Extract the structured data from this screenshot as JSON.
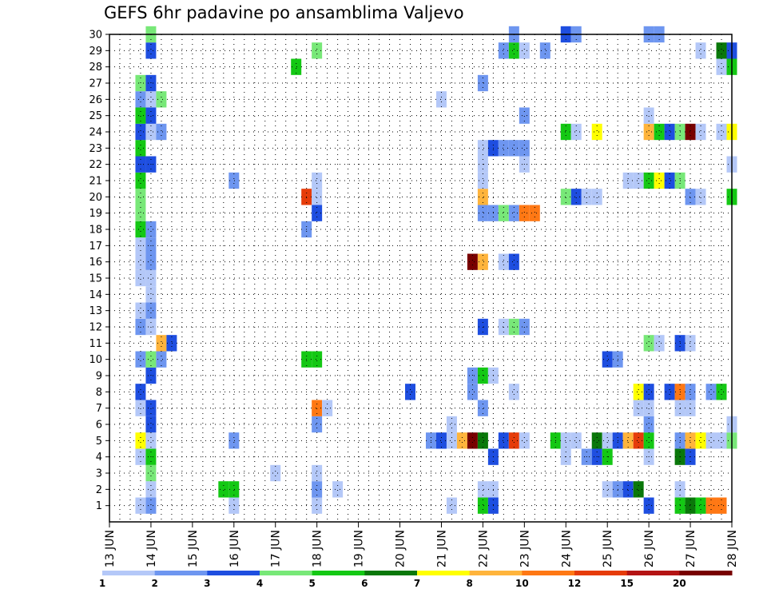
{
  "title": "GEFS 6hr padavine po ansamblima Valjevo",
  "chart_data": {
    "type": "heatmap",
    "title": "GEFS 6hr padavine po ansamblima Valjevo",
    "x_ticks": [
      "13 JUN",
      "14 JUN",
      "15 JUN",
      "16 JUN",
      "17 JUN",
      "18 JUN",
      "19 JUN",
      "20 JUN",
      "21 JUN",
      "22 JUN",
      "23 JUN",
      "24 JUN",
      "25 JUN",
      "26 JUN",
      "27 JUN",
      "28 JUN"
    ],
    "y_ticks": [
      "1",
      "2",
      "3",
      "4",
      "5",
      "6",
      "7",
      "8",
      "9",
      "10",
      "11",
      "12",
      "13",
      "14",
      "15",
      "16",
      "17",
      "18",
      "19",
      "20",
      "21",
      "22",
      "23",
      "24",
      "25",
      "26",
      "27",
      "28",
      "29",
      "30"
    ],
    "xlim": [
      "13 JUN 00Z",
      "28 JUN 00Z"
    ],
    "ylim": [
      0.5,
      30.5
    ],
    "time_step_hours": 6,
    "grid": "dotted",
    "colorbar": {
      "labels": [
        "1",
        "2",
        "3",
        "4",
        "5",
        "6",
        "7",
        "8",
        "10",
        "12",
        "15",
        "20"
      ],
      "colors": [
        "#b4c8f8",
        "#6e96f0",
        "#1e4ee0",
        "#78e878",
        "#14c814",
        "#0a780a",
        "#ffff00",
        "#ffb43c",
        "#ff7814",
        "#e63c0a",
        "#b41414",
        "#780000"
      ]
    },
    "cells": [
      {
        "m": 1,
        "t": "14 JUN 00Z",
        "c": 2
      },
      {
        "m": 1,
        "t": "13 JUN 18Z",
        "c": 1
      },
      {
        "m": 1,
        "t": "16 JUN 00Z",
        "c": 1
      },
      {
        "m": 1,
        "t": "18 JUN 00Z",
        "c": 1
      },
      {
        "m": 1,
        "t": "21 JUN 06Z",
        "c": 1
      },
      {
        "m": 1,
        "t": "22 JUN 00Z",
        "c": 5
      },
      {
        "m": 1,
        "t": "22 JUN 06Z",
        "c": 3
      },
      {
        "m": 1,
        "t": "26 JUN 00Z",
        "c": 3
      },
      {
        "m": 1,
        "t": "26 JUN 18Z",
        "c": 5
      },
      {
        "m": 1,
        "t": "27 JUN 00Z",
        "c": 6
      },
      {
        "m": 1,
        "t": "27 JUN 06Z",
        "c": 5
      },
      {
        "m": 1,
        "t": "27 JUN 12Z",
        "c": 9
      },
      {
        "m": 1,
        "t": "27 JUN 18Z",
        "c": 9
      },
      {
        "m": 2,
        "t": "14 JUN 00Z",
        "c": 1
      },
      {
        "m": 2,
        "t": "15 JUN 18Z",
        "c": 5
      },
      {
        "m": 2,
        "t": "16 JUN 00Z",
        "c": 5
      },
      {
        "m": 2,
        "t": "18 JUN 00Z",
        "c": 2
      },
      {
        "m": 2,
        "t": "18 JUN 12Z",
        "c": 1
      },
      {
        "m": 2,
        "t": "22 JUN 00Z",
        "c": 1
      },
      {
        "m": 2,
        "t": "22 JUN 06Z",
        "c": 1
      },
      {
        "m": 2,
        "t": "25 JUN 00Z",
        "c": 1
      },
      {
        "m": 2,
        "t": "25 JUN 06Z",
        "c": 2
      },
      {
        "m": 2,
        "t": "25 JUN 12Z",
        "c": 3
      },
      {
        "m": 2,
        "t": "25 JUN 18Z",
        "c": 6
      },
      {
        "m": 2,
        "t": "26 JUN 18Z",
        "c": 1
      },
      {
        "m": 3,
        "t": "14 JUN 00Z",
        "c": 4
      },
      {
        "m": 3,
        "t": "17 JUN 00Z",
        "c": 1
      },
      {
        "m": 3,
        "t": "18 JUN 00Z",
        "c": 1
      },
      {
        "m": 4,
        "t": "13 JUN 18Z",
        "c": 1
      },
      {
        "m": 4,
        "t": "14 JUN 00Z",
        "c": 5
      },
      {
        "m": 4,
        "t": "22 JUN 06Z",
        "c": 3
      },
      {
        "m": 4,
        "t": "24 JUN 00Z",
        "c": 1
      },
      {
        "m": 4,
        "t": "24 JUN 12Z",
        "c": 2
      },
      {
        "m": 4,
        "t": "24 JUN 18Z",
        "c": 3
      },
      {
        "m": 4,
        "t": "25 JUN 00Z",
        "c": 5
      },
      {
        "m": 4,
        "t": "26 JUN 00Z",
        "c": 1
      },
      {
        "m": 4,
        "t": "26 JUN 18Z",
        "c": 6
      },
      {
        "m": 4,
        "t": "27 JUN 00Z",
        "c": 3
      },
      {
        "m": 5,
        "t": "13 JUN 18Z",
        "c": 7
      },
      {
        "m": 5,
        "t": "14 JUN 00Z",
        "c": 1
      },
      {
        "m": 5,
        "t": "16 JUN 00Z",
        "c": 2
      },
      {
        "m": 5,
        "t": "20 JUN 18Z",
        "c": 2
      },
      {
        "m": 5,
        "t": "21 JUN 00Z",
        "c": 3
      },
      {
        "m": 5,
        "t": "21 JUN 06Z",
        "c": 1
      },
      {
        "m": 5,
        "t": "21 JUN 12Z",
        "c": 8
      },
      {
        "m": 5,
        "t": "21 JUN 18Z",
        "c": 12
      },
      {
        "m": 5,
        "t": "22 JUN 00Z",
        "c": 6
      },
      {
        "m": 5,
        "t": "22 JUN 12Z",
        "c": 3
      },
      {
        "m": 5,
        "t": "22 JUN 18Z",
        "c": 10
      },
      {
        "m": 5,
        "t": "23 JUN 00Z",
        "c": 1
      },
      {
        "m": 5,
        "t": "23 JUN 18Z",
        "c": 5
      },
      {
        "m": 5,
        "t": "24 JUN 00Z",
        "c": 1
      },
      {
        "m": 5,
        "t": "24 JUN 06Z",
        "c": 1
      },
      {
        "m": 5,
        "t": "24 JUN 18Z",
        "c": 6
      },
      {
        "m": 5,
        "t": "25 JUN 00Z",
        "c": 1
      },
      {
        "m": 5,
        "t": "25 JUN 06Z",
        "c": 3
      },
      {
        "m": 5,
        "t": "25 JUN 12Z",
        "c": 8
      },
      {
        "m": 5,
        "t": "25 JUN 18Z",
        "c": 10
      },
      {
        "m": 5,
        "t": "26 JUN 00Z",
        "c": 5
      },
      {
        "m": 5,
        "t": "26 JUN 18Z",
        "c": 2
      },
      {
        "m": 5,
        "t": "27 JUN 00Z",
        "c": 8
      },
      {
        "m": 5,
        "t": "27 JUN 06Z",
        "c": 7
      },
      {
        "m": 5,
        "t": "27 JUN 12Z",
        "c": 1
      },
      {
        "m": 5,
        "t": "27 JUN 18Z",
        "c": 1
      },
      {
        "m": 5,
        "t": "28 JUN 00Z",
        "c": 4
      },
      {
        "m": 6,
        "t": "14 JUN 00Z",
        "c": 3
      },
      {
        "m": 6,
        "t": "18 JUN 00Z",
        "c": 2
      },
      {
        "m": 6,
        "t": "21 JUN 06Z",
        "c": 1
      },
      {
        "m": 6,
        "t": "26 JUN 00Z",
        "c": 2
      },
      {
        "m": 6,
        "t": "28 JUN 00Z",
        "c": 1
      },
      {
        "m": 7,
        "t": "13 JUN 18Z",
        "c": 1
      },
      {
        "m": 7,
        "t": "14 JUN 00Z",
        "c": 3
      },
      {
        "m": 7,
        "t": "18 JUN 00Z",
        "c": 9
      },
      {
        "m": 7,
        "t": "18 JUN 06Z",
        "c": 1
      },
      {
        "m": 7,
        "t": "22 JUN 00Z",
        "c": 2
      },
      {
        "m": 7,
        "t": "25 JUN 18Z",
        "c": 1
      },
      {
        "m": 7,
        "t": "26 JUN 00Z",
        "c": 1
      },
      {
        "m": 7,
        "t": "26 JUN 18Z",
        "c": 1
      },
      {
        "m": 7,
        "t": "27 JUN 00Z",
        "c": 1
      },
      {
        "m": 8,
        "t": "13 JUN 18Z",
        "c": 3
      },
      {
        "m": 8,
        "t": "20 JUN 06Z",
        "c": 3
      },
      {
        "m": 8,
        "t": "21 JUN 18Z",
        "c": 2
      },
      {
        "m": 8,
        "t": "22 JUN 18Z",
        "c": 1
      },
      {
        "m": 8,
        "t": "25 JUN 18Z",
        "c": 7
      },
      {
        "m": 8,
        "t": "26 JUN 00Z",
        "c": 3
      },
      {
        "m": 8,
        "t": "26 JUN 12Z",
        "c": 3
      },
      {
        "m": 8,
        "t": "26 JUN 18Z",
        "c": 9
      },
      {
        "m": 8,
        "t": "27 JUN 00Z",
        "c": 2
      },
      {
        "m": 8,
        "t": "27 JUN 12Z",
        "c": 2
      },
      {
        "m": 8,
        "t": "27 JUN 18Z",
        "c": 5
      },
      {
        "m": 9,
        "t": "14 JUN 00Z",
        "c": 3
      },
      {
        "m": 9,
        "t": "21 JUN 18Z",
        "c": 2
      },
      {
        "m": 9,
        "t": "22 JUN 00Z",
        "c": 5
      },
      {
        "m": 9,
        "t": "22 JUN 06Z",
        "c": 1
      },
      {
        "m": 10,
        "t": "13 JUN 18Z",
        "c": 2
      },
      {
        "m": 10,
        "t": "14 JUN 00Z",
        "c": 4
      },
      {
        "m": 10,
        "t": "14 JUN 06Z",
        "c": 2
      },
      {
        "m": 10,
        "t": "17 JUN 18Z",
        "c": 5
      },
      {
        "m": 10,
        "t": "18 JUN 00Z",
        "c": 5
      },
      {
        "m": 10,
        "t": "25 JUN 00Z",
        "c": 3
      },
      {
        "m": 10,
        "t": "25 JUN 06Z",
        "c": 2
      },
      {
        "m": 11,
        "t": "14 JUN 06Z",
        "c": 8
      },
      {
        "m": 11,
        "t": "14 JUN 12Z",
        "c": 3
      },
      {
        "m": 11,
        "t": "26 JUN 00Z",
        "c": 4
      },
      {
        "m": 11,
        "t": "26 JUN 06Z",
        "c": 1
      },
      {
        "m": 11,
        "t": "26 JUN 18Z",
        "c": 3
      },
      {
        "m": 11,
        "t": "27 JUN 00Z",
        "c": 1
      },
      {
        "m": 12,
        "t": "13 JUN 18Z",
        "c": 2
      },
      {
        "m": 12,
        "t": "14 JUN 00Z",
        "c": 1
      },
      {
        "m": 12,
        "t": "22 JUN 00Z",
        "c": 3
      },
      {
        "m": 12,
        "t": "22 JUN 12Z",
        "c": 1
      },
      {
        "m": 12,
        "t": "22 JUN 18Z",
        "c": 4
      },
      {
        "m": 12,
        "t": "23 JUN 00Z",
        "c": 2
      },
      {
        "m": 13,
        "t": "13 JUN 18Z",
        "c": 1
      },
      {
        "m": 13,
        "t": "14 JUN 00Z",
        "c": 2
      },
      {
        "m": 14,
        "t": "14 JUN 00Z",
        "c": 1
      },
      {
        "m": 15,
        "t": "13 JUN 18Z",
        "c": 1
      },
      {
        "m": 15,
        "t": "14 JUN 00Z",
        "c": 1
      },
      {
        "m": 16,
        "t": "13 JUN 18Z",
        "c": 1
      },
      {
        "m": 16,
        "t": "14 JUN 00Z",
        "c": 2
      },
      {
        "m": 16,
        "t": "21 JUN 18Z",
        "c": 12
      },
      {
        "m": 16,
        "t": "22 JUN 00Z",
        "c": 8
      },
      {
        "m": 16,
        "t": "22 JUN 12Z",
        "c": 1
      },
      {
        "m": 16,
        "t": "22 JUN 18Z",
        "c": 3
      },
      {
        "m": 17,
        "t": "13 JUN 18Z",
        "c": 1
      },
      {
        "m": 17,
        "t": "14 JUN 00Z",
        "c": 2
      },
      {
        "m": 18,
        "t": "13 JUN 18Z",
        "c": 5
      },
      {
        "m": 18,
        "t": "14 JUN 00Z",
        "c": 2
      },
      {
        "m": 18,
        "t": "17 JUN 18Z",
        "c": 2
      },
      {
        "m": 19,
        "t": "13 JUN 18Z",
        "c": 4
      },
      {
        "m": 19,
        "t": "18 JUN 00Z",
        "c": 3
      },
      {
        "m": 19,
        "t": "22 JUN 00Z",
        "c": 2
      },
      {
        "m": 19,
        "t": "22 JUN 06Z",
        "c": 2
      },
      {
        "m": 19,
        "t": "22 JUN 12Z",
        "c": 4
      },
      {
        "m": 19,
        "t": "22 JUN 18Z",
        "c": 2
      },
      {
        "m": 19,
        "t": "23 JUN 00Z",
        "c": 9
      },
      {
        "m": 19,
        "t": "23 JUN 06Z",
        "c": 9
      },
      {
        "m": 20,
        "t": "13 JUN 18Z",
        "c": 4
      },
      {
        "m": 20,
        "t": "17 JUN 18Z",
        "c": 10
      },
      {
        "m": 20,
        "t": "18 JUN 00Z",
        "c": 1
      },
      {
        "m": 20,
        "t": "22 JUN 00Z",
        "c": 8
      },
      {
        "m": 20,
        "t": "24 JUN 00Z",
        "c": 4
      },
      {
        "m": 20,
        "t": "24 JUN 06Z",
        "c": 3
      },
      {
        "m": 20,
        "t": "24 JUN 12Z",
        "c": 1
      },
      {
        "m": 20,
        "t": "24 JUN 18Z",
        "c": 1
      },
      {
        "m": 20,
        "t": "27 JUN 00Z",
        "c": 2
      },
      {
        "m": 20,
        "t": "27 JUN 06Z",
        "c": 1
      },
      {
        "m": 20,
        "t": "28 JUN 00Z",
        "c": 5
      },
      {
        "m": 21,
        "t": "13 JUN 18Z",
        "c": 5
      },
      {
        "m": 21,
        "t": "16 JUN 00Z",
        "c": 2
      },
      {
        "m": 21,
        "t": "18 JUN 00Z",
        "c": 1
      },
      {
        "m": 21,
        "t": "22 JUN 00Z",
        "c": 1
      },
      {
        "m": 21,
        "t": "25 JUN 12Z",
        "c": 1
      },
      {
        "m": 21,
        "t": "25 JUN 18Z",
        "c": 1
      },
      {
        "m": 21,
        "t": "26 JUN 00Z",
        "c": 5
      },
      {
        "m": 21,
        "t": "26 JUN 06Z",
        "c": 7
      },
      {
        "m": 21,
        "t": "26 JUN 12Z",
        "c": 3
      },
      {
        "m": 21,
        "t": "26 JUN 18Z",
        "c": 4
      },
      {
        "m": 22,
        "t": "13 JUN 18Z",
        "c": 3
      },
      {
        "m": 22,
        "t": "14 JUN 00Z",
        "c": 3
      },
      {
        "m": 22,
        "t": "22 JUN 00Z",
        "c": 1
      },
      {
        "m": 22,
        "t": "23 JUN 00Z",
        "c": 1
      },
      {
        "m": 22,
        "t": "28 JUN 00Z",
        "c": 1
      },
      {
        "m": 23,
        "t": "13 JUN 18Z",
        "c": 5
      },
      {
        "m": 23,
        "t": "22 JUN 00Z",
        "c": 1
      },
      {
        "m": 23,
        "t": "22 JUN 06Z",
        "c": 3
      },
      {
        "m": 23,
        "t": "22 JUN 12Z",
        "c": 2
      },
      {
        "m": 23,
        "t": "22 JUN 18Z",
        "c": 2
      },
      {
        "m": 23,
        "t": "23 JUN 00Z",
        "c": 2
      },
      {
        "m": 24,
        "t": "13 JUN 18Z",
        "c": 3
      },
      {
        "m": 24,
        "t": "14 JUN 00Z",
        "c": 1
      },
      {
        "m": 24,
        "t": "14 JUN 06Z",
        "c": 2
      },
      {
        "m": 24,
        "t": "24 JUN 00Z",
        "c": 5
      },
      {
        "m": 24,
        "t": "24 JUN 06Z",
        "c": 1
      },
      {
        "m": 24,
        "t": "24 JUN 18Z",
        "c": 7
      },
      {
        "m": 24,
        "t": "26 JUN 00Z",
        "c": 8
      },
      {
        "m": 24,
        "t": "26 JUN 06Z",
        "c": 5
      },
      {
        "m": 24,
        "t": "26 JUN 12Z",
        "c": 3
      },
      {
        "m": 24,
        "t": "26 JUN 18Z",
        "c": 4
      },
      {
        "m": 24,
        "t": "27 JUN 00Z",
        "c": 12
      },
      {
        "m": 24,
        "t": "27 JUN 06Z",
        "c": 1
      },
      {
        "m": 24,
        "t": "27 JUN 18Z",
        "c": 1
      },
      {
        "m": 24,
        "t": "28 JUN 00Z",
        "c": 7
      },
      {
        "m": 25,
        "t": "13 JUN 18Z",
        "c": 5
      },
      {
        "m": 25,
        "t": "14 JUN 00Z",
        "c": 3
      },
      {
        "m": 25,
        "t": "23 JUN 00Z",
        "c": 2
      },
      {
        "m": 25,
        "t": "26 JUN 00Z",
        "c": 1
      },
      {
        "m": 26,
        "t": "13 JUN 18Z",
        "c": 2
      },
      {
        "m": 26,
        "t": "14 JUN 00Z",
        "c": 1
      },
      {
        "m": 26,
        "t": "14 JUN 06Z",
        "c": 4
      },
      {
        "m": 26,
        "t": "21 JUN 00Z",
        "c": 1
      },
      {
        "m": 27,
        "t": "13 JUN 18Z",
        "c": 4
      },
      {
        "m": 27,
        "t": "14 JUN 00Z",
        "c": 3
      },
      {
        "m": 27,
        "t": "22 JUN 00Z",
        "c": 2
      },
      {
        "m": 28,
        "t": "17 JUN 12Z",
        "c": 5
      },
      {
        "m": 28,
        "t": "27 JUN 18Z",
        "c": 1
      },
      {
        "m": 28,
        "t": "28 JUN 00Z",
        "c": 5
      },
      {
        "m": 29,
        "t": "14 JUN 00Z",
        "c": 3
      },
      {
        "m": 29,
        "t": "18 JUN 00Z",
        "c": 4
      },
      {
        "m": 29,
        "t": "22 JUN 12Z",
        "c": 2
      },
      {
        "m": 29,
        "t": "22 JUN 18Z",
        "c": 5
      },
      {
        "m": 29,
        "t": "23 JUN 00Z",
        "c": 1
      },
      {
        "m": 29,
        "t": "23 JUN 12Z",
        "c": 2
      },
      {
        "m": 29,
        "t": "27 JUN 06Z",
        "c": 1
      },
      {
        "m": 29,
        "t": "27 JUN 18Z",
        "c": 6
      },
      {
        "m": 29,
        "t": "28 JUN 00Z",
        "c": 3
      },
      {
        "m": 30,
        "t": "14 JUN 00Z",
        "c": 4
      },
      {
        "m": 30,
        "t": "22 JUN 18Z",
        "c": 2
      },
      {
        "m": 30,
        "t": "24 JUN 00Z",
        "c": 3
      },
      {
        "m": 30,
        "t": "24 JUN 06Z",
        "c": 2
      },
      {
        "m": 30,
        "t": "26 JUN 00Z",
        "c": 2
      },
      {
        "m": 30,
        "t": "26 JUN 06Z",
        "c": 2
      }
    ]
  }
}
